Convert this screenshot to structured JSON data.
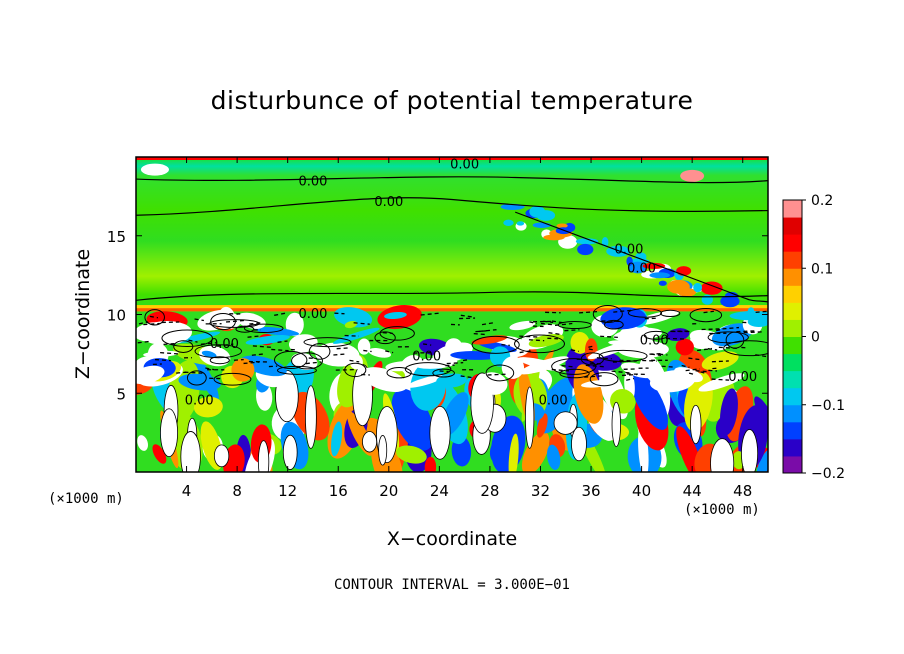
{
  "chart_data": {
    "type": "heatmap",
    "title": "disturbunce of potential temperature",
    "xlabel": "X−coordinate",
    "ylabel": "Z−coordinate",
    "x_unit": "(×1000 m)",
    "x_ticks": [
      4,
      8,
      12,
      16,
      20,
      24,
      28,
      32,
      36,
      40,
      44,
      48
    ],
    "y_ticks": [
      5,
      10,
      15
    ],
    "xlim": [
      0,
      50
    ],
    "ylim": [
      0,
      20
    ],
    "colorbar": {
      "ticks": [
        "0.2",
        "0.1",
        "0",
        "−0.1",
        "−0.2"
      ],
      "range": [
        -0.2,
        0.2
      ],
      "colors": [
        "#7a0ca8",
        "#2a00c8",
        "#0040ff",
        "#0090ff",
        "#00c8f0",
        "#00e0b0",
        "#00e060",
        "#40e000",
        "#a0f000",
        "#e0f000",
        "#ffd000",
        "#ff9000",
        "#ff4000",
        "#ff0000",
        "#e00000",
        "#ff9090"
      ]
    },
    "contour_labels": [
      "0.00",
      "0.00",
      "0.00",
      "0.00",
      "0.00",
      "0.00",
      "0.00",
      "0.00",
      "0.00",
      "0.00",
      "0.00",
      "0.00"
    ],
    "contour_interval_text": "CONTOUR INTERVAL = 3.000E−01",
    "bands": [
      {
        "z_from": 10.5,
        "z_to": 20,
        "regime": "stable layer, weak perturbation (green) with wave pattern at upper right"
      },
      {
        "z_from": 0,
        "z_to": 10.5,
        "regime": "convective layer, strong perturbations"
      }
    ]
  }
}
